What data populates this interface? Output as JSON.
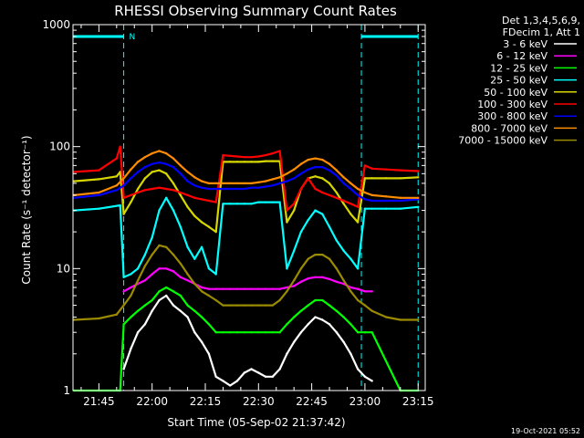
{
  "chart_data": {
    "type": "line",
    "title": "RHESSI Observing Summary Count Rates",
    "xlabel": "Start Time (05-Sep-02 21:37:42)",
    "ylabel": "Count Rate (s⁻¹ detector⁻¹)",
    "y_scale": "log",
    "ylim": [
      1,
      1000
    ],
    "xlim": [
      "21:37:42",
      "23:17:00"
    ],
    "x_ticks": [
      "21:45",
      "22:00",
      "22:15",
      "22:30",
      "22:45",
      "23:00",
      "23:15"
    ],
    "y_ticks": [
      "1",
      "10",
      "100",
      "1000"
    ],
    "grid": false,
    "legend_position": "top-right",
    "legend_header": [
      "Det 1,3,4,5,6,9,",
      "FDecim 1, Att 1"
    ],
    "timestamp": "19-Oct-2021 05:52",
    "annotations": [
      {
        "text": "N",
        "x": "21:52:30",
        "y": 800,
        "color": "#00ffff"
      }
    ],
    "shaded_intervals": [
      {
        "from": "21:37:42",
        "to": "21:52:00",
        "label": "N",
        "level": 800,
        "color": "#00ffff"
      },
      {
        "from": "22:59:00",
        "to": "23:15:00",
        "level": 800,
        "color": "#00ffff"
      }
    ],
    "series": [
      {
        "name": "3 - 6 keV",
        "color": "#ffffff",
        "x": [
          "21:52",
          "21:54",
          "21:56",
          "21:58",
          "22:00",
          "22:02",
          "22:04",
          "22:06",
          "22:08",
          "22:10",
          "22:12",
          "22:14",
          "22:16",
          "22:18",
          "22:20",
          "22:22",
          "22:24",
          "22:26",
          "22:28",
          "22:30",
          "22:32",
          "22:34",
          "22:36",
          "22:38",
          "22:40",
          "22:42",
          "22:44",
          "22:46",
          "22:48",
          "22:50",
          "22:52",
          "22:54",
          "22:56",
          "22:58",
          "23:00",
          "23:02"
        ],
        "values": [
          1.5,
          2.2,
          3.0,
          3.5,
          4.5,
          5.5,
          6.0,
          5.0,
          4.5,
          4.0,
          3.0,
          2.5,
          2.0,
          1.3,
          1.2,
          1.1,
          1.2,
          1.4,
          1.5,
          1.4,
          1.3,
          1.3,
          1.5,
          2.0,
          2.5,
          3.0,
          3.5,
          4.0,
          3.8,
          3.5,
          3.0,
          2.5,
          2.0,
          1.5,
          1.3,
          1.2
        ]
      },
      {
        "name": "6 - 12 keV",
        "color": "#ff00ff",
        "x": [
          "21:52",
          "21:54",
          "21:56",
          "21:58",
          "22:00",
          "22:02",
          "22:04",
          "22:06",
          "22:08",
          "22:10",
          "22:12",
          "22:14",
          "22:16",
          "22:18",
          "22:20",
          "22:22",
          "22:24",
          "22:26",
          "22:28",
          "22:30",
          "22:32",
          "22:34",
          "22:36",
          "22:38",
          "22:40",
          "22:42",
          "22:44",
          "22:46",
          "22:48",
          "22:50",
          "22:52",
          "22:54",
          "22:56",
          "22:58",
          "23:00",
          "23:02"
        ],
        "values": [
          6.5,
          7.0,
          7.5,
          8.0,
          9.0,
          10.0,
          10.0,
          9.5,
          8.5,
          8.0,
          7.5,
          7.0,
          6.8,
          6.8,
          6.8,
          6.8,
          6.8,
          6.8,
          6.8,
          6.8,
          6.8,
          6.8,
          6.8,
          7.0,
          7.2,
          7.8,
          8.3,
          8.5,
          8.5,
          8.2,
          7.8,
          7.5,
          7.0,
          6.8,
          6.5,
          6.5
        ]
      },
      {
        "name": "12 - 25 keV",
        "color": "#00ff00",
        "x": [
          "21:38",
          "21:45",
          "21:51",
          "21:52",
          "21:54",
          "21:56",
          "21:58",
          "22:00",
          "22:02",
          "22:04",
          "22:06",
          "22:08",
          "22:10",
          "22:12",
          "22:14",
          "22:16",
          "22:18",
          "22:20",
          "22:22",
          "22:24",
          "22:26",
          "22:28",
          "22:30",
          "22:32",
          "22:34",
          "22:36",
          "22:38",
          "22:40",
          "22:42",
          "22:44",
          "22:46",
          "22:48",
          "22:50",
          "22:52",
          "22:54",
          "22:56",
          "22:58",
          "23:00",
          "23:02",
          "23:10",
          "23:15"
        ],
        "values": [
          1.0,
          1.0,
          1.0,
          3.5,
          4.0,
          4.5,
          5.0,
          5.5,
          6.5,
          7.0,
          6.5,
          6.0,
          5.0,
          4.5,
          4.0,
          3.5,
          3.0,
          3.0,
          3.0,
          3.0,
          3.0,
          3.0,
          3.0,
          3.0,
          3.0,
          3.0,
          3.5,
          4.0,
          4.5,
          5.0,
          5.5,
          5.5,
          5.0,
          4.5,
          4.0,
          3.5,
          3.0,
          3.0,
          3.0,
          1.0,
          1.0
        ]
      },
      {
        "name": "25 - 50 keV",
        "color": "#00ffff",
        "x": [
          "21:38",
          "21:45",
          "21:51",
          "21:52",
          "21:54",
          "21:56",
          "21:58",
          "22:00",
          "22:02",
          "22:04",
          "22:06",
          "22:08",
          "22:10",
          "22:12",
          "22:14",
          "22:16",
          "22:18",
          "22:20",
          "22:22",
          "22:24",
          "22:26",
          "22:28",
          "22:30",
          "22:32",
          "22:34",
          "22:36",
          "22:38",
          "22:40",
          "22:42",
          "22:44",
          "22:46",
          "22:48",
          "22:50",
          "22:52",
          "22:54",
          "22:56",
          "22:58",
          "23:00",
          "23:02",
          "23:06",
          "23:10",
          "23:15"
        ],
        "values": [
          30,
          31,
          33,
          8.5,
          9.0,
          10,
          13,
          18,
          30,
          38,
          30,
          22,
          15,
          12,
          15,
          10,
          9.0,
          34,
          34,
          34,
          34,
          34,
          35,
          35,
          35,
          35,
          10,
          14,
          20,
          25,
          30,
          28,
          22,
          17,
          14,
          12,
          10,
          31,
          31,
          31,
          31,
          32
        ]
      },
      {
        "name": "50 - 100 keV",
        "color": "#d7d700",
        "x": [
          "21:38",
          "21:45",
          "21:50",
          "21:51",
          "21:52",
          "21:54",
          "21:56",
          "21:58",
          "22:00",
          "22:02",
          "22:04",
          "22:06",
          "22:08",
          "22:10",
          "22:12",
          "22:14",
          "22:16",
          "22:18",
          "22:20",
          "22:22",
          "22:24",
          "22:26",
          "22:28",
          "22:30",
          "22:32",
          "22:34",
          "22:36",
          "22:38",
          "22:40",
          "22:42",
          "22:44",
          "22:46",
          "22:48",
          "22:50",
          "22:52",
          "22:54",
          "22:56",
          "22:58",
          "23:00",
          "23:02",
          "23:06",
          "23:10",
          "23:15"
        ],
        "values": [
          52,
          54,
          57,
          62,
          28,
          35,
          45,
          55,
          62,
          64,
          60,
          50,
          40,
          32,
          27,
          24,
          22,
          20,
          75,
          75,
          75,
          75,
          75,
          75,
          76,
          76,
          76,
          24,
          30,
          45,
          55,
          57,
          55,
          50,
          42,
          34,
          28,
          24,
          55,
          55,
          55,
          55,
          56
        ]
      },
      {
        "name": "100 - 300 keV",
        "color": "#ff0000",
        "x": [
          "21:38",
          "21:45",
          "21:50",
          "21:51",
          "21:52",
          "21:54",
          "21:56",
          "21:58",
          "22:00",
          "22:02",
          "22:04",
          "22:06",
          "22:08",
          "22:10",
          "22:12",
          "22:14",
          "22:16",
          "22:18",
          "22:20",
          "22:22",
          "22:24",
          "22:26",
          "22:28",
          "22:30",
          "22:32",
          "22:34",
          "22:36",
          "22:38",
          "22:40",
          "22:42",
          "22:44",
          "22:46",
          "22:48",
          "22:50",
          "22:52",
          "22:54",
          "22:56",
          "22:58",
          "23:00",
          "23:02",
          "23:06",
          "23:10",
          "23:15"
        ],
        "values": [
          62,
          64,
          80,
          100,
          38,
          40,
          42,
          44,
          45,
          46,
          45,
          44,
          42,
          40,
          38,
          37,
          36,
          35,
          85,
          84,
          83,
          82,
          82,
          83,
          85,
          88,
          92,
          30,
          34,
          45,
          55,
          45,
          42,
          40,
          38,
          36,
          34,
          32,
          70,
          66,
          65,
          64,
          63
        ]
      },
      {
        "name": "300 - 800 keV",
        "color": "#0000ff",
        "x": [
          "21:38",
          "21:45",
          "21:50",
          "21:52",
          "21:54",
          "21:56",
          "21:58",
          "22:00",
          "22:02",
          "22:04",
          "22:06",
          "22:08",
          "22:10",
          "22:12",
          "22:14",
          "22:16",
          "22:18",
          "22:20",
          "22:22",
          "22:24",
          "22:26",
          "22:28",
          "22:30",
          "22:32",
          "22:34",
          "22:36",
          "22:38",
          "22:40",
          "22:42",
          "22:44",
          "22:46",
          "22:48",
          "22:50",
          "22:52",
          "22:54",
          "22:56",
          "22:58",
          "23:00",
          "23:02",
          "23:06",
          "23:10",
          "23:15"
        ],
        "values": [
          38,
          40,
          44,
          48,
          55,
          62,
          68,
          72,
          74,
          72,
          68,
          60,
          52,
          48,
          46,
          45,
          45,
          45,
          45,
          45,
          45,
          46,
          46,
          47,
          48,
          50,
          52,
          55,
          60,
          65,
          68,
          68,
          64,
          58,
          50,
          45,
          40,
          37,
          36,
          36,
          36,
          37
        ]
      },
      {
        "name": "800 - 7000 keV",
        "color": "#ff8c00",
        "x": [
          "21:38",
          "21:45",
          "21:50",
          "21:52",
          "21:54",
          "21:56",
          "21:58",
          "22:00",
          "22:02",
          "22:04",
          "22:06",
          "22:08",
          "22:10",
          "22:12",
          "22:14",
          "22:16",
          "22:18",
          "22:20",
          "22:22",
          "22:24",
          "22:26",
          "22:28",
          "22:30",
          "22:32",
          "22:34",
          "22:36",
          "22:38",
          "22:40",
          "22:42",
          "22:44",
          "22:46",
          "22:48",
          "22:50",
          "22:52",
          "22:54",
          "22:56",
          "22:58",
          "23:00",
          "23:02",
          "23:06",
          "23:10",
          "23:15"
        ],
        "values": [
          40,
          42,
          48,
          55,
          65,
          75,
          82,
          88,
          92,
          88,
          80,
          70,
          62,
          56,
          52,
          50,
          50,
          50,
          50,
          50,
          50,
          50,
          51,
          52,
          54,
          56,
          60,
          65,
          72,
          78,
          80,
          78,
          72,
          64,
          56,
          50,
          45,
          42,
          40,
          39,
          38,
          38
        ]
      },
      {
        "name": "7000 - 15000 keV",
        "color": "#9b8b00",
        "x": [
          "21:38",
          "21:45",
          "21:50",
          "21:52",
          "21:54",
          "21:56",
          "21:58",
          "22:00",
          "22:02",
          "22:04",
          "22:06",
          "22:08",
          "22:10",
          "22:12",
          "22:14",
          "22:16",
          "22:18",
          "22:20",
          "22:22",
          "22:24",
          "22:26",
          "22:28",
          "22:30",
          "22:32",
          "22:34",
          "22:36",
          "22:38",
          "22:40",
          "22:42",
          "22:44",
          "22:46",
          "22:48",
          "22:50",
          "22:52",
          "22:54",
          "22:56",
          "22:58",
          "23:00",
          "23:02",
          "23:06",
          "23:10",
          "23:15"
        ],
        "values": [
          3.8,
          3.9,
          4.2,
          5.0,
          6.0,
          8.0,
          10.5,
          13.0,
          15.5,
          15.0,
          13.0,
          11.0,
          9.0,
          7.5,
          6.5,
          6.0,
          5.5,
          5.0,
          5.0,
          5.0,
          5.0,
          5.0,
          5.0,
          5.0,
          5.0,
          5.5,
          6.5,
          8.0,
          10.0,
          12.0,
          13.0,
          13.0,
          12.0,
          10.0,
          8.0,
          6.5,
          5.5,
          5.0,
          4.5,
          4.0,
          3.8,
          3.8
        ]
      }
    ]
  }
}
